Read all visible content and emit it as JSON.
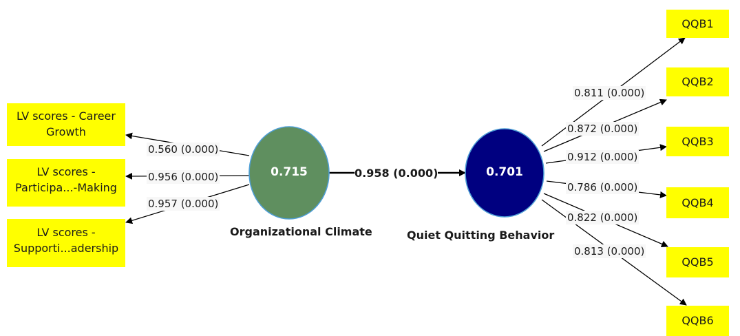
{
  "constructs": {
    "organizational_climate": {
      "name": "Organizational Climate",
      "value": "0.715",
      "color": "#5f8f5f"
    },
    "quiet_quitting_behavior": {
      "name": "Quiet Quitting Behavior",
      "value": "0.701",
      "color": "#000080"
    }
  },
  "structural_path": {
    "label": "0.958 (0.000)"
  },
  "oc_indicators": [
    {
      "line1": "LV scores - Career",
      "line2": "Growth",
      "loading": "0.560 (0.000)"
    },
    {
      "line1": "LV scores -",
      "line2": "Participa...-Making",
      "loading": "0.956 (0.000)"
    },
    {
      "line1": "LV scores -",
      "line2": "Supporti...adership",
      "loading": "0.957 (0.000)"
    }
  ],
  "qqb_indicators": [
    {
      "label": "QQB1",
      "loading": "0.811 (0.000)"
    },
    {
      "label": "QQB2",
      "loading": "0.872 (0.000)"
    },
    {
      "label": "QQB3",
      "loading": "0.912 (0.000)"
    },
    {
      "label": "QQB4",
      "loading": "0.786 (0.000)"
    },
    {
      "label": "QQB5",
      "loading": "0.822 (0.000)"
    },
    {
      "label": "QQB6",
      "loading": "0.813 (0.000)"
    }
  ],
  "colors": {
    "indicator_fill": "#ffff00",
    "ellipse_stroke": "#4f9fd6",
    "arrow": "#000000"
  }
}
